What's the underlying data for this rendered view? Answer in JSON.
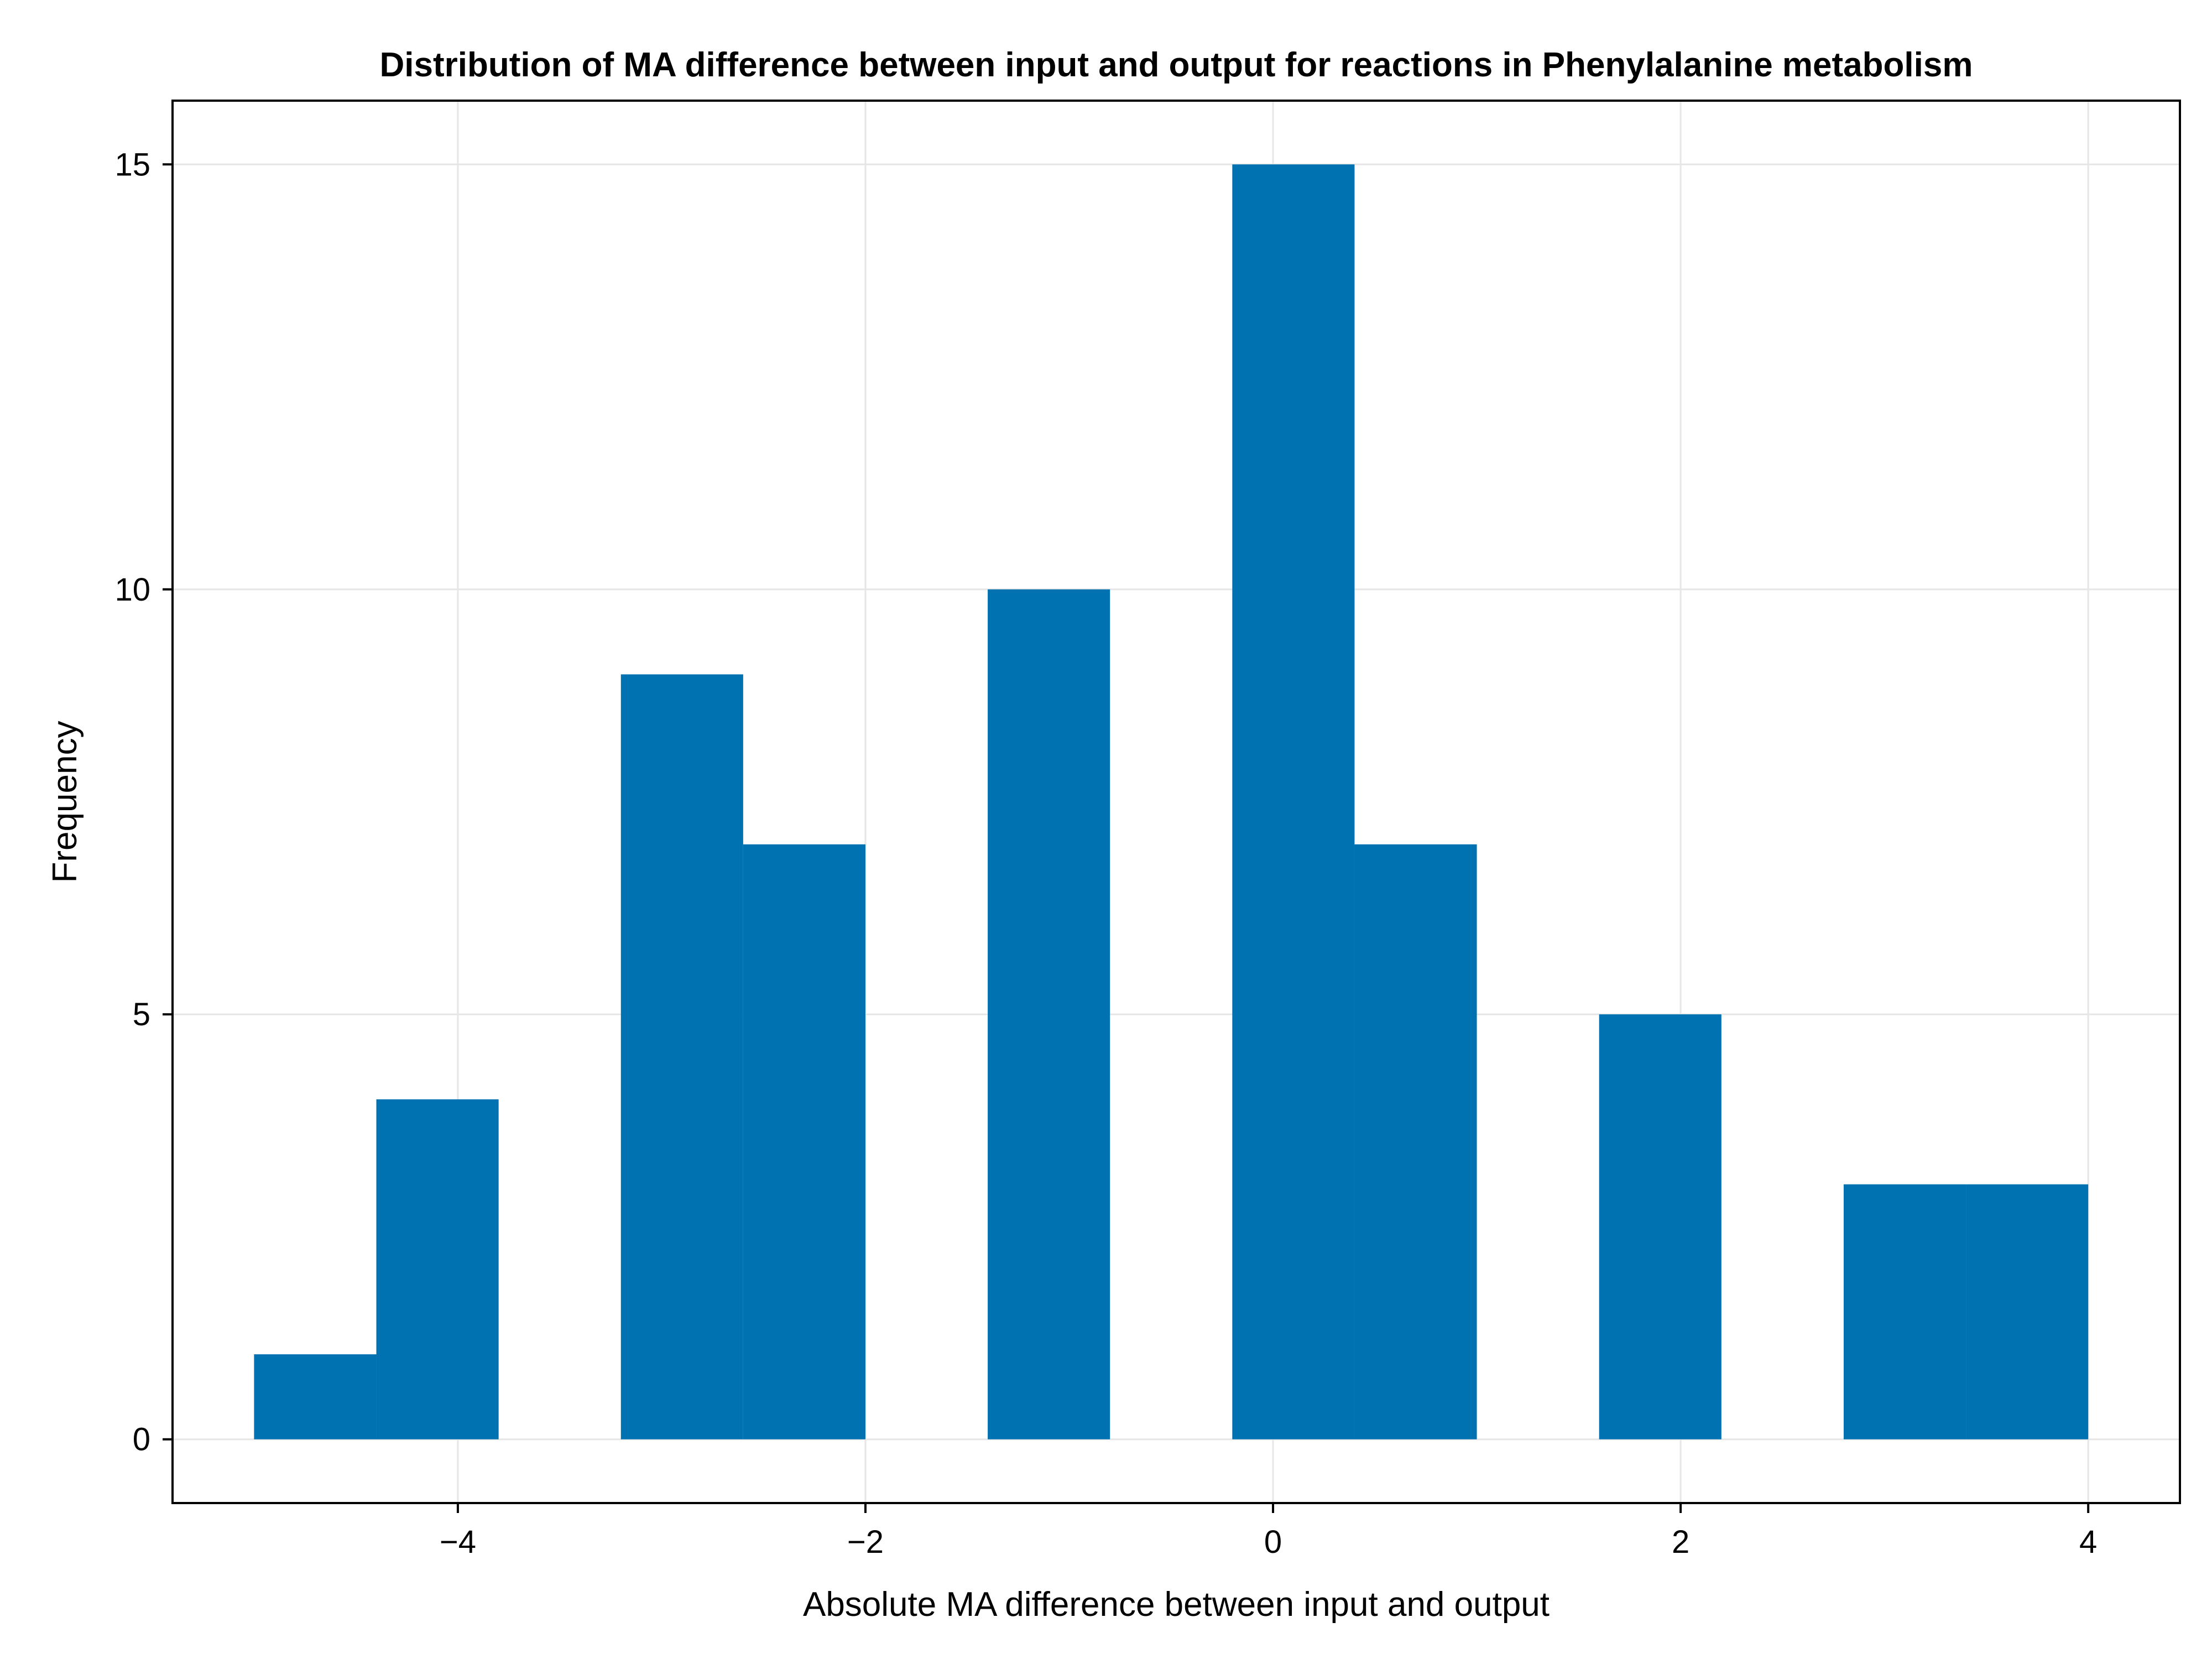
{
  "chart_data": {
    "type": "bar",
    "title": "Distribution of MA difference between input and output for reactions in Phenylalanine metabolism",
    "xlabel": "Absolute MA difference between input and output",
    "ylabel": "Frequency",
    "bin_width": 0.6,
    "bins": [
      {
        "x0": -5.0,
        "x1": -4.4,
        "count": 1
      },
      {
        "x0": -4.4,
        "x1": -3.8,
        "count": 4
      },
      {
        "x0": -3.8,
        "x1": -3.2,
        "count": 0
      },
      {
        "x0": -3.2,
        "x1": -2.6,
        "count": 9
      },
      {
        "x0": -2.6,
        "x1": -2.0,
        "count": 7
      },
      {
        "x0": -2.0,
        "x1": -1.4,
        "count": 0
      },
      {
        "x0": -1.4,
        "x1": -0.8,
        "count": 10
      },
      {
        "x0": -0.8,
        "x1": -0.2,
        "count": 0
      },
      {
        "x0": -0.2,
        "x1": 0.4,
        "count": 15
      },
      {
        "x0": 0.4,
        "x1": 1.0,
        "count": 7
      },
      {
        "x0": 1.0,
        "x1": 1.6,
        "count": 0
      },
      {
        "x0": 1.6,
        "x1": 2.2,
        "count": 5
      },
      {
        "x0": 2.2,
        "x1": 2.8,
        "count": 0
      },
      {
        "x0": 2.8,
        "x1": 3.4,
        "count": 3
      },
      {
        "x0": 3.4,
        "x1": 4.0,
        "count": 3
      }
    ],
    "xlim": [
      -5.4,
      4.45
    ],
    "ylim": [
      -0.75,
      15.75
    ],
    "xticks": [
      -4,
      -2,
      0,
      2,
      4
    ],
    "xtick_labels": [
      "−4",
      "−2",
      "0",
      "2",
      "4"
    ],
    "yticks": [
      0,
      5,
      10,
      15
    ],
    "ytick_labels": [
      "0",
      "5",
      "10",
      "15"
    ],
    "grid": true,
    "legend": "none",
    "bar_color": "#0072B2"
  }
}
